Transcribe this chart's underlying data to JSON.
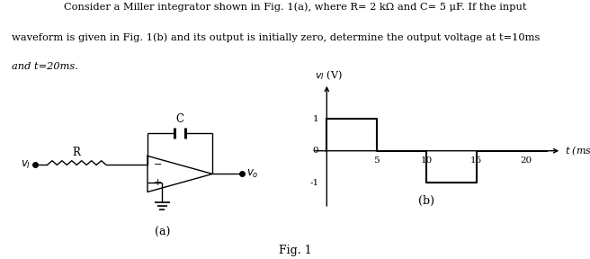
{
  "title_line1": "Consider a Miller integrator shown in Fig. 1(a), where R= 2 kΩ and C= 5 μF. If the input",
  "title_line2": "waveform is given in Fig. 1(b) and its output is initially zero, determine the output voltage at t=10ms",
  "title_line3": "and t=20ms.",
  "fig_label": "Fig. 1",
  "sub_a_label": "(a)",
  "sub_b_label": "(b)",
  "background_color": "#ffffff",
  "text_color": "#000000",
  "circuit": {
    "vi_label": "$v_I$",
    "vo_label": "$v_o$",
    "R_label": "R",
    "C_label": "C",
    "minus": "−",
    "plus": "+"
  },
  "waveform": {
    "x": [
      0,
      0,
      5,
      5,
      10,
      10,
      15,
      15,
      20,
      20,
      22
    ],
    "y": [
      0,
      1,
      1,
      0,
      0,
      -1,
      -1,
      0,
      0,
      0,
      0
    ],
    "ylabel": "$v_I$ (V)",
    "xlabel": "$t$ (ms)",
    "xlim": [
      -2,
      24
    ],
    "ylim": [
      -2.0,
      2.2
    ]
  }
}
